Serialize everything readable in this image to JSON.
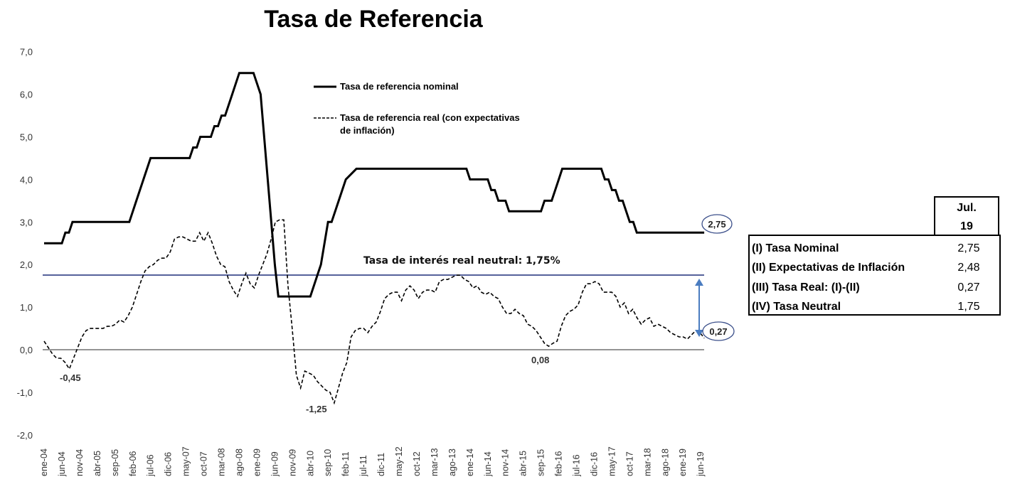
{
  "title": "Tasa de Referencia",
  "legend": {
    "nominal": "Tasa de referencia nominal",
    "real_line1": "Tasa de referencia real (con expectativas",
    "real_line2": "de inflación)"
  },
  "annotations": {
    "neutral_label": "Tasa de interés real neutral: 1,75%",
    "min_2004": "-0,45",
    "min_2010": "-1,25",
    "min_2015": "0,08",
    "last_nominal": "2,75",
    "last_real": "0,27"
  },
  "colors": {
    "nominal": "#000000",
    "real": "#000000",
    "neutral_line": "#1f2f7a",
    "zero_line": "#555555",
    "arrow": "#4a7cc0",
    "bubble_border": "#3b4f8a"
  },
  "table": {
    "header_line1": "Jul.",
    "header_line2": "19",
    "rows": [
      {
        "label": "(I) Tasa Nominal",
        "value": "2,75"
      },
      {
        "label": "(II) Expectativas de Inflación",
        "value": "2,48"
      },
      {
        "label": "(III) Tasa Real: (I)-(II)",
        "value": "0,27"
      },
      {
        "label": "(IV) Tasa Neutral",
        "value": "1,75"
      }
    ]
  },
  "chart_data": {
    "type": "line",
    "title": "Tasa de Referencia",
    "xlabel": "",
    "ylabel": "",
    "ylim": [
      -2.0,
      7.0
    ],
    "yticks": [
      "7,0",
      "6,0",
      "5,0",
      "4,0",
      "3,0",
      "2,0",
      "1,0",
      "0,0",
      "-1,0",
      "-2,0"
    ],
    "categories": [
      "ene-04",
      "jun-04",
      "nov-04",
      "abr-05",
      "sep-05",
      "feb-06",
      "jul-06",
      "dic-06",
      "may-07",
      "oct-07",
      "mar-08",
      "ago-08",
      "ene-09",
      "jun-09",
      "nov-09",
      "abr-10",
      "sep-10",
      "feb-11",
      "jul-11",
      "dic-11",
      "may-12",
      "oct-12",
      "mar-13",
      "ago-13",
      "ene-14",
      "jun-14",
      "nov-14",
      "abr-15",
      "sep-15",
      "feb-16",
      "jul-16",
      "dic-16",
      "may-17",
      "oct-17",
      "mar-18",
      "ago-18",
      "ene-19",
      "jun-19"
    ],
    "legend_position": "top-center",
    "grid": false,
    "reference_lines": [
      {
        "name": "Tasa de interés real neutral",
        "value": 1.75
      },
      {
        "name": "zero",
        "value": 0.0
      }
    ],
    "series": [
      {
        "name": "Tasa de referencia nominal",
        "style": "solid",
        "points": [
          [
            "ene-04",
            2.5
          ],
          [
            "jun-04",
            2.5
          ],
          [
            "jul-04",
            2.75
          ],
          [
            "ago-04",
            2.75
          ],
          [
            "sep-04",
            3.0
          ],
          [
            "nov-04",
            3.0
          ],
          [
            "abr-05",
            3.0
          ],
          [
            "sep-05",
            3.0
          ],
          [
            "ene-06",
            3.0
          ],
          [
            "mar-06",
            3.5
          ],
          [
            "may-06",
            4.0
          ],
          [
            "jul-06",
            4.5
          ],
          [
            "dic-06",
            4.5
          ],
          [
            "may-07",
            4.5
          ],
          [
            "jun-07",
            4.5
          ],
          [
            "jul-07",
            4.75
          ],
          [
            "ago-07",
            4.75
          ],
          [
            "sep-07",
            5.0
          ],
          [
            "nov-07",
            5.0
          ],
          [
            "dic-07",
            5.0
          ],
          [
            "ene-08",
            5.25
          ],
          [
            "feb-08",
            5.25
          ],
          [
            "mar-08",
            5.5
          ],
          [
            "abr-08",
            5.5
          ],
          [
            "jun-08",
            6.0
          ],
          [
            "ago-08",
            6.5
          ],
          [
            "dic-08",
            6.5
          ],
          [
            "feb-09",
            6.0
          ],
          [
            "may-09",
            3.0
          ],
          [
            "jun-09",
            2.0
          ],
          [
            "jul-09",
            1.25
          ],
          [
            "nov-09",
            1.25
          ],
          [
            "abr-10",
            1.25
          ],
          [
            "jun-10",
            1.75
          ],
          [
            "jul-10",
            2.0
          ],
          [
            "ago-10",
            2.5
          ],
          [
            "sep-10",
            3.0
          ],
          [
            "oct-10",
            3.0
          ],
          [
            "dic-10",
            3.5
          ],
          [
            "feb-11",
            4.0
          ],
          [
            "may-11",
            4.25
          ],
          [
            "jul-11",
            4.25
          ],
          [
            "dic-11",
            4.25
          ],
          [
            "may-12",
            4.25
          ],
          [
            "oct-12",
            4.25
          ],
          [
            "mar-13",
            4.25
          ],
          [
            "ago-13",
            4.25
          ],
          [
            "dic-13",
            4.25
          ],
          [
            "ene-14",
            4.0
          ],
          [
            "jun-14",
            4.0
          ],
          [
            "jul-14",
            3.75
          ],
          [
            "ago-14",
            3.75
          ],
          [
            "sep-14",
            3.5
          ],
          [
            "oct-14",
            3.5
          ],
          [
            "nov-14",
            3.5
          ],
          [
            "dic-14",
            3.25
          ],
          [
            "abr-15",
            3.25
          ],
          [
            "sep-15",
            3.25
          ],
          [
            "oct-15",
            3.5
          ],
          [
            "nov-15",
            3.5
          ],
          [
            "dic-15",
            3.5
          ],
          [
            "feb-16",
            4.0
          ],
          [
            "mar-16",
            4.25
          ],
          [
            "jul-16",
            4.25
          ],
          [
            "dic-16",
            4.25
          ],
          [
            "feb-17",
            4.25
          ],
          [
            "mar-17",
            4.0
          ],
          [
            "abr-17",
            4.0
          ],
          [
            "may-17",
            3.75
          ],
          [
            "jun-17",
            3.75
          ],
          [
            "jul-17",
            3.5
          ],
          [
            "ago-17",
            3.5
          ],
          [
            "sep-17",
            3.25
          ],
          [
            "oct-17",
            3.0
          ],
          [
            "nov-17",
            3.0
          ],
          [
            "dic-17",
            2.75
          ],
          [
            "mar-18",
            2.75
          ],
          [
            "ago-18",
            2.75
          ],
          [
            "ene-19",
            2.75
          ],
          [
            "jul-19",
            2.75
          ]
        ]
      },
      {
        "name": "Tasa de referencia real (con expectativas de inflación)",
        "style": "dashed",
        "points": [
          [
            "ene-04",
            0.2
          ],
          [
            "feb-04",
            0.05
          ],
          [
            "mar-04",
            -0.1
          ],
          [
            "abr-04",
            -0.2
          ],
          [
            "may-04",
            -0.2
          ],
          [
            "jun-04",
            -0.3
          ],
          [
            "jul-04",
            -0.45
          ],
          [
            "ago-04",
            -0.2
          ],
          [
            "sep-04",
            0.05
          ],
          [
            "oct-04",
            0.3
          ],
          [
            "nov-04",
            0.45
          ],
          [
            "dic-04",
            0.5
          ],
          [
            "ene-05",
            0.5
          ],
          [
            "feb-05",
            0.5
          ],
          [
            "abr-05",
            0.5
          ],
          [
            "may-05",
            0.55
          ],
          [
            "jun-05",
            0.55
          ],
          [
            "jul-05",
            0.6
          ],
          [
            "ago-05",
            0.7
          ],
          [
            "sep-05",
            0.65
          ],
          [
            "oct-05",
            0.8
          ],
          [
            "nov-05",
            1.0
          ],
          [
            "dic-05",
            1.3
          ],
          [
            "ene-06",
            1.6
          ],
          [
            "feb-06",
            1.85
          ],
          [
            "mar-06",
            1.95
          ],
          [
            "abr-06",
            2.0
          ],
          [
            "may-06",
            2.1
          ],
          [
            "jun-06",
            2.15
          ],
          [
            "jul-06",
            2.15
          ],
          [
            "ago-06",
            2.3
          ],
          [
            "sep-06",
            2.6
          ],
          [
            "oct-06",
            2.65
          ],
          [
            "nov-06",
            2.65
          ],
          [
            "dic-06",
            2.6
          ],
          [
            "ene-07",
            2.55
          ],
          [
            "feb-07",
            2.55
          ],
          [
            "mar-07",
            2.75
          ],
          [
            "abr-07",
            2.55
          ],
          [
            "may-07",
            2.75
          ],
          [
            "jun-07",
            2.5
          ],
          [
            "jul-07",
            2.2
          ],
          [
            "ago-07",
            2.0
          ],
          [
            "sep-07",
            1.95
          ],
          [
            "oct-07",
            1.6
          ],
          [
            "nov-07",
            1.4
          ],
          [
            "dic-07",
            1.25
          ],
          [
            "ene-08",
            1.55
          ],
          [
            "feb-08",
            1.8
          ],
          [
            "mar-08",
            1.55
          ],
          [
            "abr-08",
            1.45
          ],
          [
            "may-08",
            1.75
          ],
          [
            "jun-08",
            2.0
          ],
          [
            "jul-08",
            2.25
          ],
          [
            "ago-08",
            2.6
          ],
          [
            "sep-08",
            3.0
          ],
          [
            "oct-08",
            3.05
          ],
          [
            "nov-08",
            3.05
          ],
          [
            "dic-08",
            1.5
          ],
          [
            "ene-09",
            0.5
          ],
          [
            "feb-09",
            -0.6
          ],
          [
            "mar-09",
            -0.9
          ],
          [
            "abr-09",
            -0.5
          ],
          [
            "may-09",
            -0.55
          ],
          [
            "jun-09",
            -0.6
          ],
          [
            "jul-09",
            -0.75
          ],
          [
            "ago-09",
            -0.85
          ],
          [
            "sep-09",
            -0.95
          ],
          [
            "oct-09",
            -1.0
          ],
          [
            "nov-09",
            -1.25
          ],
          [
            "dic-09",
            -0.9
          ],
          [
            "ene-10",
            -0.55
          ],
          [
            "feb-10",
            -0.3
          ],
          [
            "mar-10",
            0.3
          ],
          [
            "abr-10",
            0.45
          ],
          [
            "may-10",
            0.5
          ],
          [
            "jun-10",
            0.5
          ],
          [
            "jul-10",
            0.4
          ],
          [
            "ago-10",
            0.55
          ],
          [
            "sep-10",
            0.65
          ],
          [
            "oct-10",
            0.9
          ],
          [
            "nov-10",
            1.2
          ],
          [
            "dic-10",
            1.3
          ],
          [
            "ene-11",
            1.35
          ],
          [
            "feb-11",
            1.35
          ],
          [
            "mar-11",
            1.15
          ],
          [
            "abr-11",
            1.4
          ],
          [
            "may-11",
            1.5
          ],
          [
            "jun-11",
            1.4
          ],
          [
            "jul-11",
            1.2
          ],
          [
            "ago-11",
            1.35
          ],
          [
            "sep-11",
            1.4
          ],
          [
            "oct-11",
            1.4
          ],
          [
            "nov-11",
            1.35
          ],
          [
            "dic-11",
            1.6
          ],
          [
            "ene-12",
            1.65
          ],
          [
            "feb-12",
            1.65
          ],
          [
            "mar-12",
            1.7
          ],
          [
            "abr-12",
            1.75
          ],
          [
            "may-12",
            1.75
          ],
          [
            "jun-12",
            1.65
          ],
          [
            "jul-12",
            1.6
          ],
          [
            "ago-12",
            1.45
          ],
          [
            "sep-12",
            1.5
          ],
          [
            "oct-12",
            1.35
          ],
          [
            "nov-12",
            1.3
          ],
          [
            "dic-12",
            1.35
          ],
          [
            "ene-13",
            1.25
          ],
          [
            "feb-13",
            1.2
          ],
          [
            "mar-13",
            1.0
          ],
          [
            "abr-13",
            0.85
          ],
          [
            "may-13",
            0.85
          ],
          [
            "jun-13",
            0.95
          ],
          [
            "jul-13",
            0.85
          ],
          [
            "ago-13",
            0.8
          ],
          [
            "sep-13",
            0.6
          ],
          [
            "oct-13",
            0.55
          ],
          [
            "nov-13",
            0.45
          ],
          [
            "dic-13",
            0.3
          ],
          [
            "ene-14",
            0.15
          ],
          [
            "feb-14",
            0.08
          ],
          [
            "mar-14",
            0.15
          ],
          [
            "abr-14",
            0.2
          ],
          [
            "may-14",
            0.55
          ],
          [
            "jun-14",
            0.8
          ],
          [
            "jul-14",
            0.9
          ],
          [
            "ago-14",
            0.95
          ],
          [
            "sep-14",
            1.05
          ],
          [
            "oct-14",
            1.35
          ],
          [
            "nov-14",
            1.55
          ],
          [
            "dic-14",
            1.55
          ],
          [
            "ene-15",
            1.6
          ],
          [
            "feb-15",
            1.55
          ],
          [
            "mar-15",
            1.35
          ],
          [
            "abr-15",
            1.35
          ],
          [
            "may-15",
            1.35
          ],
          [
            "jun-15",
            1.25
          ],
          [
            "jul-15",
            1.0
          ],
          [
            "ago-15",
            1.1
          ],
          [
            "sep-15",
            0.85
          ],
          [
            "oct-15",
            0.95
          ],
          [
            "nov-15",
            0.75
          ],
          [
            "dic-15",
            0.6
          ],
          [
            "ene-16",
            0.7
          ],
          [
            "feb-16",
            0.75
          ],
          [
            "mar-16",
            0.55
          ],
          [
            "abr-16",
            0.6
          ],
          [
            "may-16",
            0.55
          ],
          [
            "jun-16",
            0.5
          ],
          [
            "jul-16",
            0.4
          ],
          [
            "ago-16",
            0.35
          ],
          [
            "sep-16",
            0.3
          ],
          [
            "oct-16",
            0.3
          ],
          [
            "nov-16",
            0.25
          ],
          [
            "dic-16",
            0.35
          ],
          [
            "ene-17",
            0.45
          ],
          [
            "feb-17",
            0.4
          ],
          [
            "mar-17",
            0.27
          ]
        ]
      }
    ]
  }
}
